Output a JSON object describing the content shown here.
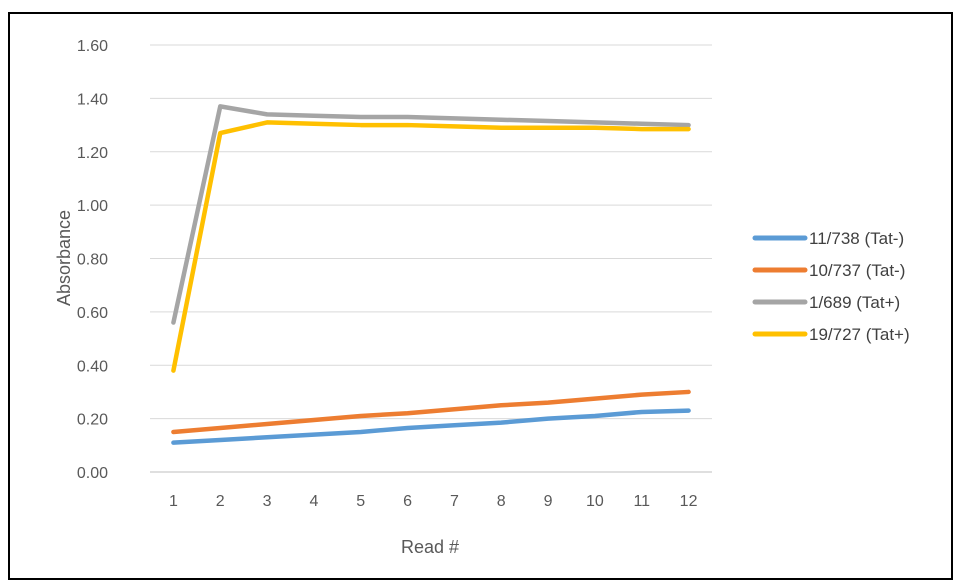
{
  "chart_data": {
    "type": "line",
    "title": "",
    "xlabel": "Read #",
    "ylabel": "Absorbance",
    "categories": [
      "1",
      "2",
      "3",
      "4",
      "5",
      "6",
      "7",
      "8",
      "9",
      "10",
      "11",
      "12"
    ],
    "ylim": [
      0,
      1.6
    ],
    "yticks": [
      "0.00",
      "0.20",
      "0.40",
      "0.60",
      "0.80",
      "1.00",
      "1.20",
      "1.40",
      "1.60"
    ],
    "grid": "horizontal",
    "legend_position": "right",
    "series": [
      {
        "name": "11/738 (Tat-)",
        "color": "#5B9BD5",
        "values": [
          0.11,
          0.12,
          0.13,
          0.14,
          0.15,
          0.165,
          0.175,
          0.185,
          0.2,
          0.21,
          0.225,
          0.23
        ]
      },
      {
        "name": "10/737 (Tat-)",
        "color": "#ED7D31",
        "values": [
          0.15,
          0.165,
          0.18,
          0.195,
          0.21,
          0.22,
          0.235,
          0.25,
          0.26,
          0.275,
          0.29,
          0.3
        ]
      },
      {
        "name": "1/689 (Tat+)",
        "color": "#A5A5A5",
        "values": [
          0.56,
          1.37,
          1.34,
          1.335,
          1.33,
          1.33,
          1.325,
          1.32,
          1.315,
          1.31,
          1.305,
          1.3
        ]
      },
      {
        "name": "19/727 (Tat+)",
        "color": "#FFC000",
        "values": [
          0.38,
          1.27,
          1.31,
          1.305,
          1.3,
          1.3,
          1.295,
          1.29,
          1.29,
          1.29,
          1.285,
          1.285
        ]
      }
    ]
  }
}
